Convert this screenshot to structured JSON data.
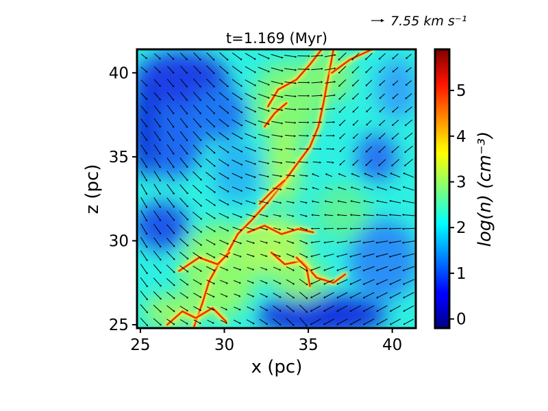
{
  "chart_data": {
    "type": "heatmap",
    "title": "t=1.169 (Myr)",
    "xlabel": "x (pc)",
    "ylabel": "z (pc)",
    "xlim": [
      24.8,
      41.4
    ],
    "ylim": [
      24.8,
      41.4
    ],
    "x_ticks": [
      25,
      30,
      35,
      40
    ],
    "y_ticks": [
      25,
      30,
      35,
      40
    ],
    "x_tick_labels": [
      "25",
      "30",
      "35",
      "40"
    ],
    "y_tick_labels": [
      "25",
      "30",
      "35",
      "40"
    ],
    "grid": false,
    "colorbar": {
      "label": "log(n) (cm⁻³)",
      "colormap": "jet",
      "vmin": -0.2,
      "vmax": 5.9,
      "ticks": [
        0,
        1,
        2,
        3,
        4,
        5
      ],
      "tick_labels": [
        "0",
        "1",
        "2",
        "3",
        "4",
        "5"
      ]
    },
    "velocity_reference": {
      "value": 7.55,
      "label": "7.55 km s⁻¹"
    },
    "filaments": [
      [
        [
          28.2,
          24.9
        ],
        [
          28.7,
          26.3
        ],
        [
          29.1,
          27.6
        ],
        [
          29.6,
          28.5
        ],
        [
          30.2,
          29.3
        ],
        [
          30.8,
          30.4
        ],
        [
          31.6,
          31.2
        ],
        [
          32.6,
          32.3
        ],
        [
          33.4,
          33.3
        ],
        [
          34.2,
          34.4
        ],
        [
          35.1,
          35.6
        ],
        [
          35.6,
          36.8
        ],
        [
          35.9,
          38.2
        ],
        [
          36.2,
          39.8
        ],
        [
          36.5,
          41.4
        ]
      ],
      [
        [
          26.6,
          25.0
        ],
        [
          27.5,
          25.8
        ],
        [
          28.3,
          25.4
        ],
        [
          29.3,
          26.0
        ],
        [
          30.1,
          25.2
        ]
      ],
      [
        [
          27.3,
          28.2
        ],
        [
          28.5,
          29.0
        ],
        [
          29.6,
          28.6
        ],
        [
          30.3,
          29.3
        ]
      ],
      [
        [
          31.4,
          30.5
        ],
        [
          32.4,
          30.9
        ],
        [
          33.4,
          30.4
        ],
        [
          34.4,
          30.7
        ],
        [
          35.3,
          30.5
        ]
      ],
      [
        [
          32.8,
          29.3
        ],
        [
          33.6,
          28.6
        ],
        [
          34.6,
          28.8
        ],
        [
          35.5,
          27.8
        ],
        [
          36.5,
          27.5
        ],
        [
          37.2,
          28.0
        ]
      ],
      [
        [
          34.3,
          29.0
        ],
        [
          34.9,
          28.4
        ],
        [
          35.1,
          27.3
        ]
      ],
      [
        [
          32.6,
          38.0
        ],
        [
          33.2,
          39.0
        ],
        [
          34.3,
          39.6
        ],
        [
          35.1,
          40.5
        ],
        [
          35.8,
          41.4
        ]
      ],
      [
        [
          32.4,
          36.8
        ],
        [
          33.0,
          37.6
        ],
        [
          33.7,
          38.2
        ]
      ],
      [
        [
          33.6,
          33.6
        ],
        [
          32.9,
          33.0
        ],
        [
          32.1,
          32.2
        ]
      ],
      [
        [
          36.4,
          40.0
        ],
        [
          37.5,
          40.8
        ],
        [
          38.8,
          41.4
        ]
      ]
    ]
  }
}
